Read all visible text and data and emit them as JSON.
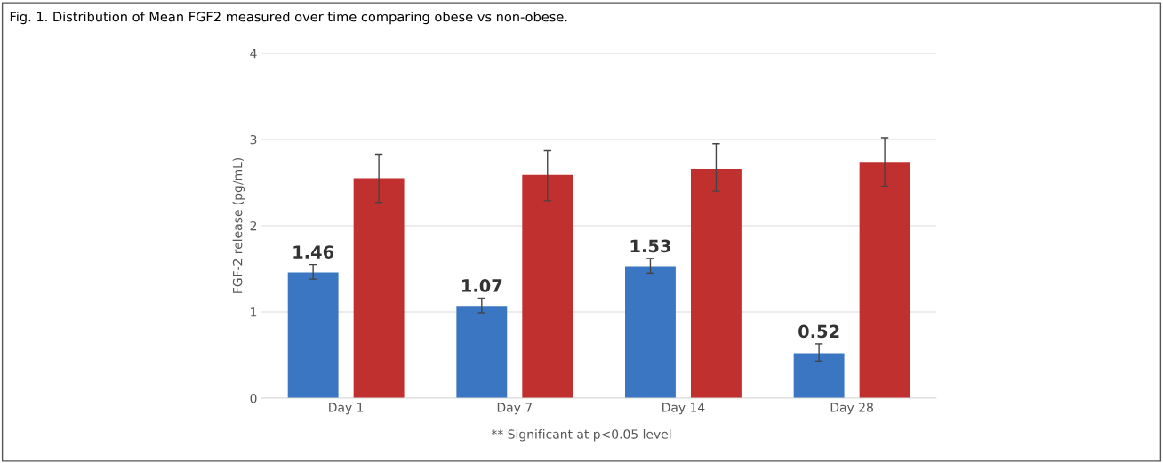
{
  "chart_data": {
    "type": "bar",
    "title": "Fig. 1. Distribution of Mean FGF2 measured over time comparing obese vs non-obese.",
    "ylabel": "FGF-2 release (pg/mL)",
    "categories": [
      "Day 1",
      "Day 7",
      "Day 14",
      "Day 28"
    ],
    "series": [
      {
        "color": "#3a76c2",
        "values": [
          1.46,
          1.07,
          1.53,
          0.52
        ],
        "errors": [
          [
            1.38,
            1.55
          ],
          [
            0.99,
            1.16
          ],
          [
            1.45,
            1.62
          ],
          [
            0.43,
            0.63
          ]
        ],
        "value_labels": [
          "1.46",
          "1.07",
          "1.53",
          "0.52"
        ]
      },
      {
        "color": "#c0302e",
        "values": [
          2.55,
          2.59,
          2.66,
          2.74
        ],
        "errors": [
          [
            2.27,
            2.83
          ],
          [
            2.29,
            2.87
          ],
          [
            2.4,
            2.95
          ],
          [
            2.46,
            3.02
          ]
        ]
      }
    ],
    "ylim": [
      0,
      4
    ],
    "yticks": [
      0,
      1,
      2,
      3,
      4
    ],
    "grid": "y",
    "annotations": [
      "** Significant at p<0.05 level"
    ]
  }
}
